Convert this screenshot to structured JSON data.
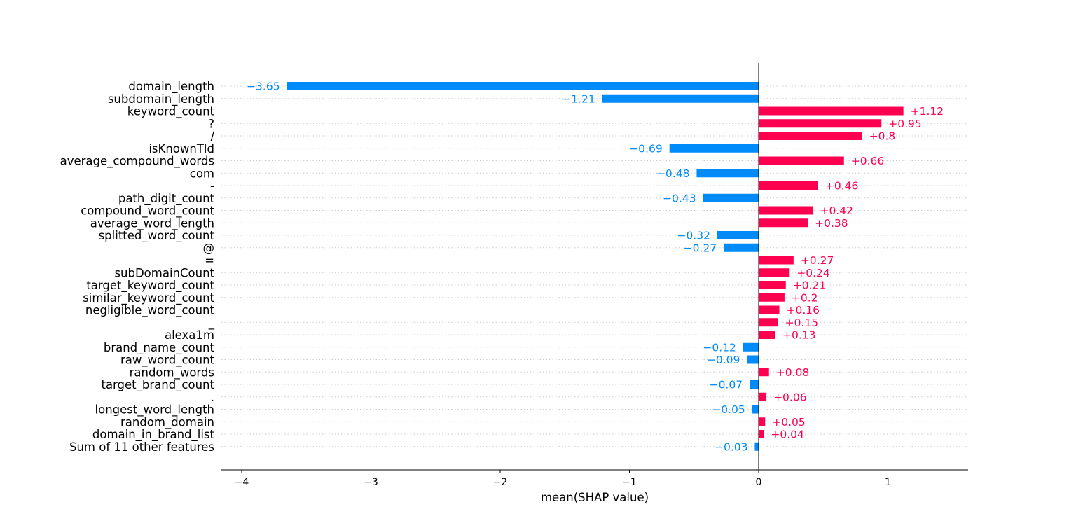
{
  "chart_data": {
    "type": "bar",
    "orientation": "horizontal",
    "xlabel": "mean(SHAP value)",
    "ylabel": "",
    "title": "",
    "xlim": [
      -4.2,
      1.6
    ],
    "xticks": [
      -4,
      -3,
      -2,
      -1,
      0,
      1
    ],
    "xtick_labels": [
      "−4",
      "−3",
      "−2",
      "−1",
      "0",
      "1"
    ],
    "colors": {
      "positive": "#ff0051",
      "negative": "#008bfb",
      "axis": "#000000"
    },
    "categories": [
      "domain_length",
      "subdomain_length",
      "keyword_count",
      "?",
      "/",
      "isKnownTld",
      "average_compound_words",
      "com",
      "-",
      "path_digit_count",
      "compound_word_count",
      "average_word_length",
      "splitted_word_count",
      "@",
      "=",
      "subDomainCount",
      "target_keyword_count",
      "similar_keyword_count",
      "negligible_word_count",
      "_",
      "alexa1m",
      "brand_name_count",
      "raw_word_count",
      "random_words",
      "target_brand_count",
      ".",
      "longest_word_length",
      "random_domain",
      "domain_in_brand_list",
      "Sum of 11 other features"
    ],
    "values": [
      -3.65,
      -1.21,
      1.12,
      0.95,
      0.8,
      -0.69,
      0.66,
      -0.48,
      0.46,
      -0.43,
      0.42,
      0.38,
      -0.32,
      -0.27,
      0.27,
      0.24,
      0.21,
      0.2,
      0.16,
      0.15,
      0.13,
      -0.12,
      -0.09,
      0.08,
      -0.07,
      0.06,
      -0.05,
      0.05,
      0.04,
      -0.03
    ],
    "value_labels": [
      "−3.65",
      "−1.21",
      "+1.12",
      "+0.95",
      "+0.8",
      "−0.69",
      "+0.66",
      "−0.48",
      "+0.46",
      "−0.43",
      "+0.42",
      "+0.38",
      "−0.32",
      "−0.27",
      "+0.27",
      "+0.24",
      "+0.21",
      "+0.2",
      "+0.16",
      "+0.15",
      "+0.13",
      "−0.12",
      "−0.09",
      "+0.08",
      "−0.07",
      "+0.06",
      "−0.05",
      "+0.05",
      "+0.04",
      "−0.03"
    ]
  }
}
